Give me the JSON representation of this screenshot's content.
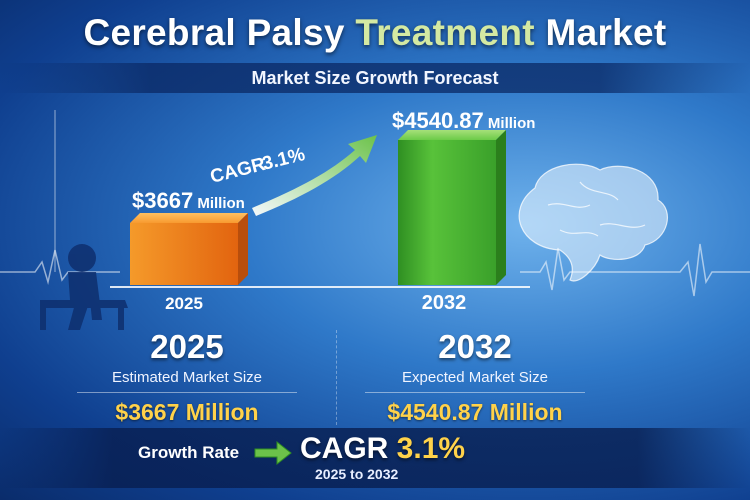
{
  "title": {
    "part1": "Cerebral Palsy ",
    "part2": "Treatment",
    "part3": " Market"
  },
  "subtitle": "Market Size Growth Forecast",
  "colors": {
    "bar_2025": "#f07a16",
    "bar_2032": "#3fae2a",
    "accent_yellow": "#ffd24a",
    "arrow_green": "#6cc24a"
  },
  "icons": [
    "walker-child-icon",
    "brain-icon",
    "ecg-line-icon",
    "growth-arrow-icon"
  ],
  "chart_data": {
    "type": "bar",
    "categories": [
      "2025",
      "2032"
    ],
    "values": [
      3667,
      4540.87
    ],
    "value_labels": [
      {
        "amount": "$3667",
        "unit": "Million"
      },
      {
        "amount": "$4540.87",
        "unit": "Million"
      }
    ],
    "annotation": {
      "label": "CAGR",
      "value": "3.1%"
    }
  },
  "stats": [
    {
      "year": "2025",
      "caption": "Estimated Market Size",
      "value": "$3667 Million"
    },
    {
      "year": "2032",
      "caption": "Expected Market Size",
      "value": "$4540.87 Million"
    }
  ],
  "growth": {
    "label": "Growth Rate",
    "cagr_prefix": "CAGR ",
    "cagr_value": "3.1%",
    "range": "2025 to 2032"
  }
}
